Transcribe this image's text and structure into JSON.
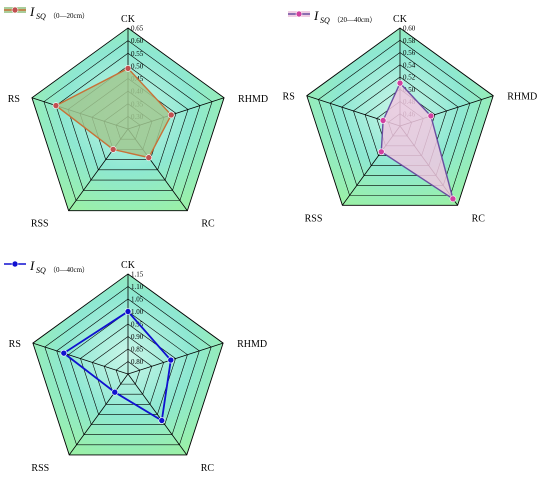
{
  "chart_data": [
    {
      "type": "radar",
      "axes": [
        "CK",
        "RHMD",
        "RC",
        "RSS",
        "RS"
      ],
      "rlim": [
        0.25,
        0.65
      ],
      "ticks": [
        "0.30",
        "0.35",
        "0.40",
        "0.45",
        "0.50",
        "0.55",
        "0.60",
        "0.65"
      ],
      "tick_values": [
        0.3,
        0.35,
        0.4,
        0.45,
        0.5,
        0.55,
        0.6,
        0.65
      ],
      "legend": {
        "symbol": "I",
        "sub": "SQ",
        "range": "（0—20cm）"
      },
      "series": [
        {
          "name": "ISQ（0—20cm）",
          "values": [
            0.49,
            0.43,
            0.39,
            0.35,
            0.55
          ],
          "color": "#c87137",
          "marker": "#c05050",
          "fill": "#a0c890"
        }
      ]
    },
    {
      "type": "radar",
      "axes": [
        "CK",
        "RHMD",
        "RC",
        "RSS",
        "RS"
      ],
      "rlim": [
        0.44,
        0.6
      ],
      "ticks": [
        "0.46",
        "0.48",
        "0.50",
        "0.52",
        "0.54",
        "0.56",
        "0.58",
        "0.60"
      ],
      "tick_values": [
        0.46,
        0.48,
        0.5,
        0.52,
        0.54,
        0.56,
        0.58,
        0.6
      ],
      "legend": {
        "symbol": "I",
        "sub": "SQ",
        "range": "（20—40cm）"
      },
      "series": [
        {
          "name": "ISQ（20—40cm）",
          "values": [
            0.51,
            0.493,
            0.587,
            0.492,
            0.469
          ],
          "color": "#6a4ea0",
          "marker": "#d040a0",
          "fill": "#f0c8e0"
        }
      ]
    },
    {
      "type": "radar",
      "axes": [
        "CK",
        "RHMD",
        "RC",
        "RSS",
        "RS"
      ],
      "rlim": [
        0.75,
        1.15
      ],
      "ticks": [
        "0.80",
        "0.85",
        "0.90",
        "0.95",
        "1.00",
        "1.05",
        "1.10",
        "1.15"
      ],
      "tick_values": [
        0.8,
        0.85,
        0.9,
        0.95,
        1.0,
        1.05,
        1.1,
        1.15
      ],
      "legend": {
        "symbol": "I",
        "sub": "SQ",
        "range": "（0—40cm）"
      },
      "series": [
        {
          "name": "ISQ（0—40cm）",
          "values": [
            1.0,
            0.93,
            0.98,
            0.84,
            1.02
          ],
          "color": "#1010d0",
          "marker": "#1010d0",
          "fill": "none"
        }
      ]
    }
  ]
}
